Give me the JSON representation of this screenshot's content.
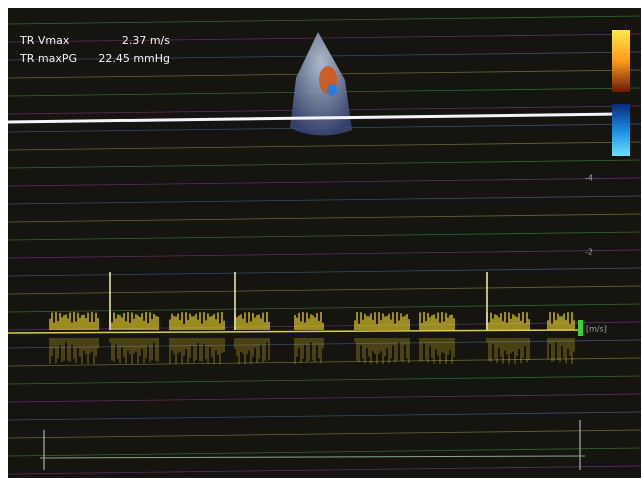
{
  "measurements": [
    {
      "label": "TR Vmax",
      "value": "2.37 m/s"
    },
    {
      "label": "TR maxPG",
      "value": "22.45 mmHg"
    }
  ],
  "scale": {
    "labels": [
      "-4",
      "-2"
    ],
    "unit": "[m/s]"
  }
}
